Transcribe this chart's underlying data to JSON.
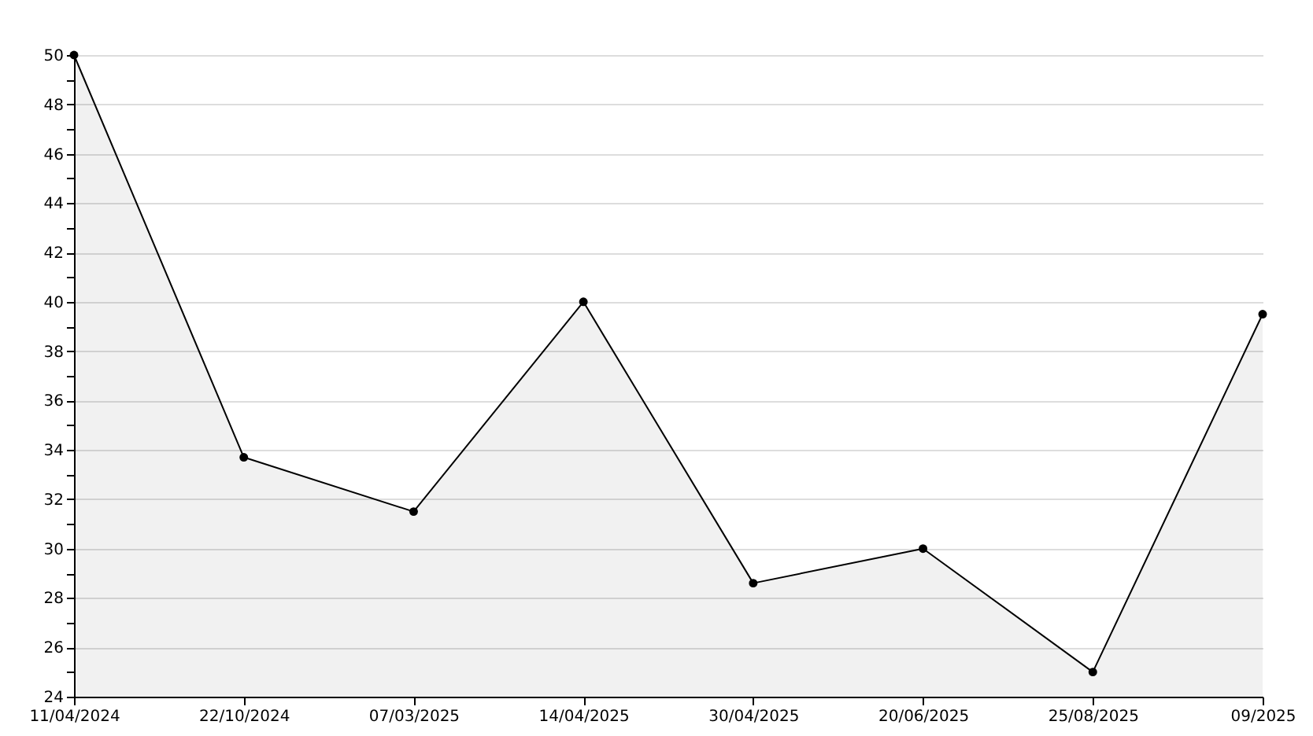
{
  "chart_data": {
    "type": "area",
    "categories": [
      "11/04/2024",
      "22/10/2024",
      "07/03/2025",
      "14/04/2025",
      "30/04/2025",
      "20/06/2025",
      "25/08/2025",
      "09/2025"
    ],
    "series": [
      {
        "color": "#000000",
        "values": [
          50,
          33.7,
          31.5,
          40,
          28.6,
          30,
          25,
          39.5
        ]
      }
    ],
    "ylim": [
      24,
      50
    ],
    "yticks": [
      24,
      {
        "value": 25,
        "label": null
      },
      26,
      {
        "value": 27,
        "label": null
      },
      28,
      {
        "value": 29,
        "label": null
      },
      30,
      {
        "value": 31,
        "label": null
      },
      32,
      {
        "value": 33,
        "label": null
      },
      34,
      {
        "value": 35,
        "label": null
      },
      36,
      {
        "value": 37,
        "label": null
      },
      38,
      {
        "value": 39,
        "label": null
      },
      40,
      {
        "value": 41,
        "label": null
      },
      42,
      {
        "value": 43,
        "label": null
      },
      44,
      {
        "value": 45,
        "label": null
      },
      46,
      {
        "value": 47,
        "label": null
      },
      48,
      {
        "value": 49,
        "label": null
      },
      50
    ],
    "grid": "y",
    "marker": "circle",
    "line_style": "solid"
  }
}
